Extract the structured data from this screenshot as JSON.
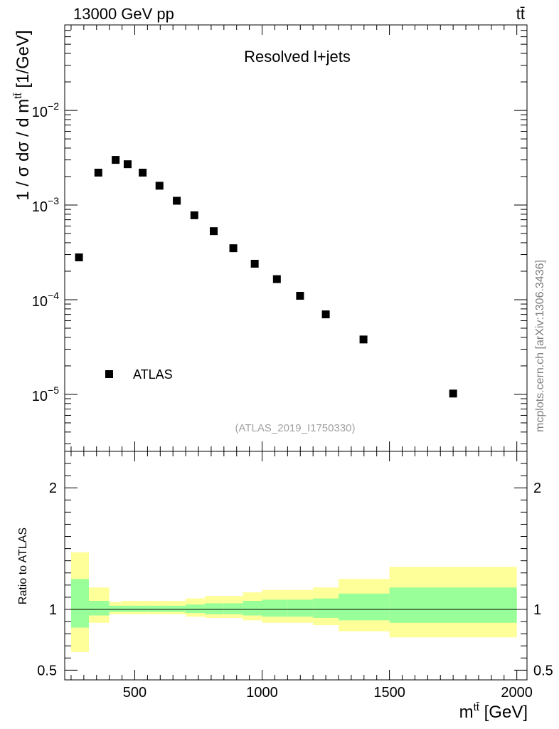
{
  "header": {
    "left_label": "13000 GeV pp",
    "right_label": "tt̄"
  },
  "side_note": "mcplots.cern.ch [arXiv:1306.3436]",
  "chart_data": [
    {
      "type": "scatter",
      "title": "Resolved l+jets",
      "ylabel": "1 / σ dσ / d m^{tt̄} [1/GeV]",
      "ylabel_main": "1 / σ dσ / d m",
      "ylabel_sup": "tt̄",
      "ylabel_unit": " [1/GeV]",
      "yscale": "log",
      "ylim": [
        2.5e-06,
        0.08
      ],
      "xlim": [
        225,
        2040
      ],
      "ytick_labels": [
        {
          "base": "10",
          "exp": "−2",
          "value": 0.01
        },
        {
          "base": "10",
          "exp": "−3",
          "value": 0.001
        },
        {
          "base": "10",
          "exp": "−4",
          "value": 0.0001
        },
        {
          "base": "10",
          "exp": "−5",
          "value": 1e-05
        }
      ],
      "annotation": "(ATLAS_2019_I1750330)",
      "legend": {
        "placement": "bottom-left",
        "entries": [
          "ATLAS"
        ]
      },
      "series": [
        {
          "name": "ATLAS",
          "color": "#000000",
          "x": [
            281,
            357,
            425,
            472,
            531,
            597,
            665,
            734,
            810,
            887,
            971,
            1058,
            1149,
            1250,
            1398,
            1750
          ],
          "y": [
            0.00028,
            0.0022,
            0.003,
            0.0027,
            0.0022,
            0.0016,
            0.00111,
            0.00078,
            0.00053,
            0.00035,
            0.00024,
            0.000165,
            0.00011,
            7e-05,
            3.8e-05,
            1.02e-05
          ]
        }
      ]
    },
    {
      "type": "area",
      "ylabel": "Ratio to ATLAS",
      "xlabel": "m^{tt̄} [GeV]",
      "xlabel_main": "m",
      "xlabel_sup": "tt̄",
      "xlabel_unit": " [GeV]",
      "xlim": [
        225,
        2040
      ],
      "ylim": [
        0.42,
        2.3
      ],
      "xtick_labels": [
        "500",
        "1000",
        "1500",
        "2000"
      ],
      "xticks": [
        500,
        1000,
        1500,
        2000
      ],
      "ytick_labels": [
        "2",
        "1",
        "0.5"
      ],
      "yticks": [
        2,
        1,
        0.5
      ],
      "reference_line": 1,
      "band_colors": {
        "outer": "#ffff99",
        "inner": "#99ff99"
      },
      "bins": [
        {
          "x0": 250,
          "x1": 320,
          "outer": [
            0.65,
            1.47
          ],
          "inner": [
            0.85,
            1.25
          ]
        },
        {
          "x0": 320,
          "x1": 400,
          "outer": [
            0.89,
            1.18
          ],
          "inner": [
            0.95,
            1.07
          ]
        },
        {
          "x0": 400,
          "x1": 450,
          "outer": [
            0.96,
            1.06
          ],
          "inner": [
            0.98,
            1.03
          ]
        },
        {
          "x0": 450,
          "x1": 500,
          "outer": [
            0.96,
            1.07
          ],
          "inner": [
            0.98,
            1.03
          ]
        },
        {
          "x0": 500,
          "x1": 550,
          "outer": [
            0.96,
            1.07
          ],
          "inner": [
            0.98,
            1.03
          ]
        },
        {
          "x0": 550,
          "x1": 625,
          "outer": [
            0.96,
            1.07
          ],
          "inner": [
            0.98,
            1.03
          ]
        },
        {
          "x0": 625,
          "x1": 700,
          "outer": [
            0.96,
            1.07
          ],
          "inner": [
            0.98,
            1.03
          ]
        },
        {
          "x0": 700,
          "x1": 775,
          "outer": [
            0.94,
            1.09
          ],
          "inner": [
            0.97,
            1.04
          ]
        },
        {
          "x0": 775,
          "x1": 850,
          "outer": [
            0.93,
            1.11
          ],
          "inner": [
            0.96,
            1.05
          ]
        },
        {
          "x0": 850,
          "x1": 925,
          "outer": [
            0.93,
            1.11
          ],
          "inner": [
            0.96,
            1.05
          ]
        },
        {
          "x0": 925,
          "x1": 1000,
          "outer": [
            0.91,
            1.14
          ],
          "inner": [
            0.95,
            1.07
          ]
        },
        {
          "x0": 1000,
          "x1": 1100,
          "outer": [
            0.89,
            1.16
          ],
          "inner": [
            0.94,
            1.08
          ]
        },
        {
          "x0": 1100,
          "x1": 1200,
          "outer": [
            0.89,
            1.16
          ],
          "inner": [
            0.94,
            1.08
          ]
        },
        {
          "x0": 1200,
          "x1": 1300,
          "outer": [
            0.87,
            1.18
          ],
          "inner": [
            0.93,
            1.09
          ]
        },
        {
          "x0": 1300,
          "x1": 1500,
          "outer": [
            0.82,
            1.25
          ],
          "inner": [
            0.91,
            1.13
          ]
        },
        {
          "x0": 1500,
          "x1": 2000,
          "outer": [
            0.77,
            1.35
          ],
          "inner": [
            0.89,
            1.18
          ]
        }
      ]
    }
  ]
}
